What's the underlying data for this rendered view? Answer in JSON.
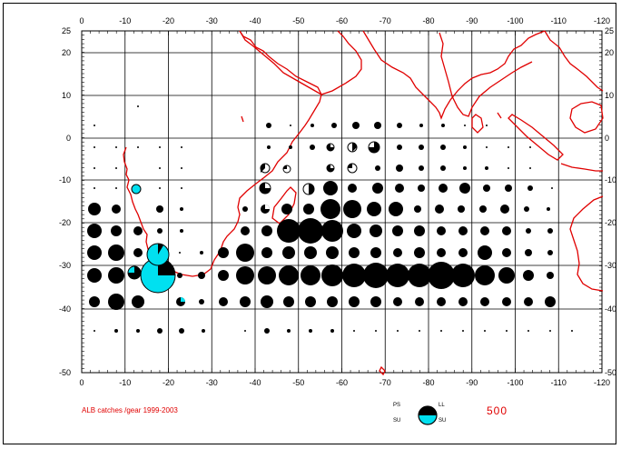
{
  "map": {
    "caption": "ALB catches /gear 1999-2003",
    "x_ticks": [
      "0",
      "-10",
      "-20",
      "-30",
      "-40",
      "-50",
      "-60",
      "-70",
      "-80",
      "-90",
      "-100",
      "-110",
      "-120"
    ],
    "y_ticks": [
      "25",
      "20",
      "10",
      "0",
      "-10",
      "-20",
      "-30",
      "-40",
      "-50"
    ],
    "colors": {
      "coast": "#e00000",
      "longline": "#000000",
      "surface": "#00e0f0",
      "grid": "#000000"
    }
  },
  "legend": {
    "ps": "PS",
    "ll": "LL",
    "su_left": "SU",
    "su_right": "SU",
    "scale_value": "500"
  }
}
